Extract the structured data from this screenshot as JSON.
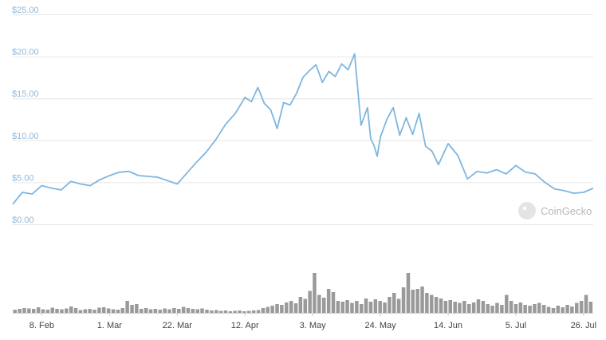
{
  "chart_data": {
    "type": "line",
    "watermark": "CoinGecko",
    "colors": {
      "price_line": "#7eb6e0",
      "volume_bar": "#9a9a9a",
      "grid": "#e6e6e6",
      "y_tick_text": "#8fb8db",
      "x_tick_text": "#444444"
    },
    "y_axis": {
      "ticks": [
        "$25.00",
        "$20.00",
        "$15.00",
        "$10.00",
        "$5.00",
        "$0.00"
      ],
      "ylim": [
        0,
        25
      ],
      "grid": true
    },
    "x_axis": {
      "ticks": [
        "8. Feb",
        "1. Mar",
        "22. Mar",
        "12. Apr",
        "3. May",
        "24. May",
        "14. Jun",
        "5. Jul",
        "26. Jul"
      ],
      "xlim": [
        "2021-01-30",
        "2021-07-29"
      ]
    },
    "series": [
      {
        "kind": "price",
        "x": [
          "2021-01-30",
          "2021-02-02",
          "2021-02-05",
          "2021-02-08",
          "2021-02-11",
          "2021-02-14",
          "2021-02-17",
          "2021-02-20",
          "2021-02-23",
          "2021-02-26",
          "2021-03-01",
          "2021-03-04",
          "2021-03-07",
          "2021-03-10",
          "2021-03-13",
          "2021-03-16",
          "2021-03-19",
          "2021-03-22",
          "2021-03-25",
          "2021-03-28",
          "2021-03-31",
          "2021-04-03",
          "2021-04-06",
          "2021-04-09",
          "2021-04-12",
          "2021-04-14",
          "2021-04-16",
          "2021-04-18",
          "2021-04-20",
          "2021-04-22",
          "2021-04-24",
          "2021-04-26",
          "2021-04-28",
          "2021-04-30",
          "2021-05-02",
          "2021-05-04",
          "2021-05-06",
          "2021-05-08",
          "2021-05-10",
          "2021-05-12",
          "2021-05-14",
          "2021-05-16",
          "2021-05-18",
          "2021-05-20",
          "2021-05-21",
          "2021-05-22",
          "2021-05-23",
          "2021-05-24",
          "2021-05-26",
          "2021-05-28",
          "2021-05-30",
          "2021-06-01",
          "2021-06-03",
          "2021-06-05",
          "2021-06-07",
          "2021-06-09",
          "2021-06-11",
          "2021-06-14",
          "2021-06-17",
          "2021-06-20",
          "2021-06-23",
          "2021-06-26",
          "2021-06-29",
          "2021-07-02",
          "2021-07-05",
          "2021-07-08",
          "2021-07-11",
          "2021-07-14",
          "2021-07-17",
          "2021-07-20",
          "2021-07-23",
          "2021-07-26",
          "2021-07-29"
        ],
        "values": [
          2.4,
          3.8,
          3.6,
          4.6,
          4.3,
          4.1,
          5.1,
          4.8,
          4.6,
          5.3,
          5.8,
          6.2,
          6.3,
          5.8,
          5.7,
          5.6,
          5.2,
          4.8,
          6.1,
          7.4,
          8.6,
          10.1,
          11.9,
          13.2,
          15.1,
          14.6,
          16.3,
          14.4,
          13.6,
          11.4,
          14.5,
          14.2,
          15.6,
          17.5,
          18.3,
          19.0,
          16.9,
          18.2,
          17.6,
          19.1,
          18.4,
          20.3,
          11.8,
          13.9,
          10.2,
          9.4,
          8.1,
          10.4,
          12.5,
          13.9,
          10.6,
          12.7,
          10.7,
          13.2,
          9.3,
          8.7,
          7.1,
          9.6,
          8.2,
          5.4,
          6.3,
          6.1,
          6.5,
          6.0,
          7.0,
          6.2,
          6.0,
          5.0,
          4.2,
          4.0,
          3.7,
          3.8,
          4.3
        ]
      },
      {
        "kind": "volume",
        "values": [
          0.08,
          0.1,
          0.12,
          0.11,
          0.1,
          0.14,
          0.09,
          0.08,
          0.13,
          0.1,
          0.09,
          0.11,
          0.16,
          0.12,
          0.07,
          0.09,
          0.1,
          0.08,
          0.13,
          0.14,
          0.11,
          0.09,
          0.08,
          0.12,
          0.3,
          0.2,
          0.22,
          0.1,
          0.12,
          0.09,
          0.1,
          0.08,
          0.11,
          0.09,
          0.12,
          0.1,
          0.15,
          0.12,
          0.1,
          0.09,
          0.11,
          0.08,
          0.06,
          0.07,
          0.05,
          0.06,
          0.04,
          0.05,
          0.06,
          0.04,
          0.05,
          0.06,
          0.07,
          0.12,
          0.15,
          0.18,
          0.22,
          0.2,
          0.26,
          0.3,
          0.24,
          0.4,
          0.35,
          0.55,
          1.0,
          0.45,
          0.38,
          0.6,
          0.52,
          0.3,
          0.28,
          0.32,
          0.25,
          0.3,
          0.22,
          0.36,
          0.28,
          0.34,
          0.3,
          0.26,
          0.4,
          0.5,
          0.35,
          0.64,
          1.0,
          0.58,
          0.6,
          0.66,
          0.5,
          0.45,
          0.4,
          0.36,
          0.3,
          0.32,
          0.28,
          0.25,
          0.3,
          0.22,
          0.26,
          0.34,
          0.3,
          0.22,
          0.18,
          0.25,
          0.2,
          0.45,
          0.3,
          0.22,
          0.26,
          0.2,
          0.18,
          0.22,
          0.25,
          0.2,
          0.15,
          0.12,
          0.18,
          0.14,
          0.2,
          0.16,
          0.25,
          0.3,
          0.45,
          0.28
        ]
      }
    ]
  }
}
